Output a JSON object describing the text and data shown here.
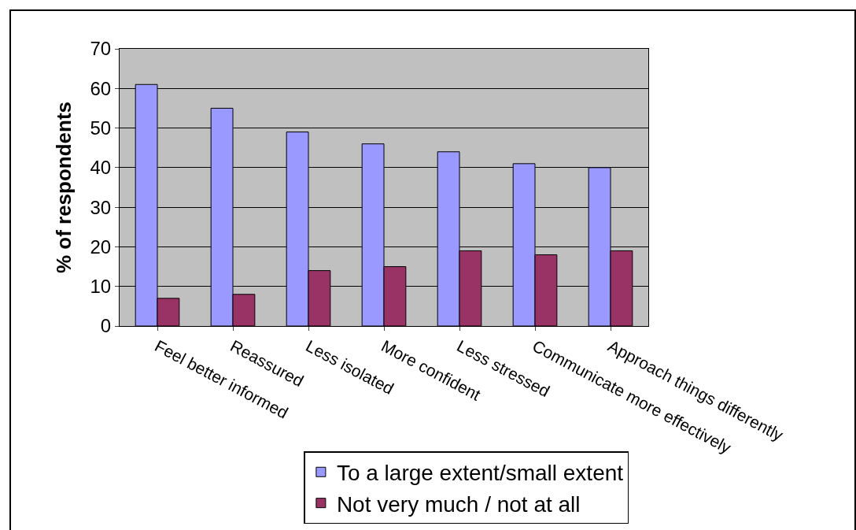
{
  "chart_data": {
    "type": "bar",
    "ylabel": "% of respondents",
    "categories": [
      "Feel better informed",
      "Reassured",
      "Less isolated",
      "More confident",
      "Less stressed",
      "Communicate more effectively",
      "Approach things differently"
    ],
    "series": [
      {
        "name": "To a large extent/small extent",
        "color": "#9999ff",
        "values": [
          61,
          55,
          49,
          46,
          44,
          41,
          40
        ]
      },
      {
        "name": "Not very much / not at all",
        "color": "#993366",
        "values": [
          7,
          8,
          14,
          15,
          19,
          18,
          19
        ]
      }
    ],
    "ylim": [
      0,
      70
    ],
    "yticks": [
      0,
      10,
      20,
      30,
      40,
      50,
      60,
      70
    ],
    "grid": "y",
    "legend": "bottom"
  }
}
